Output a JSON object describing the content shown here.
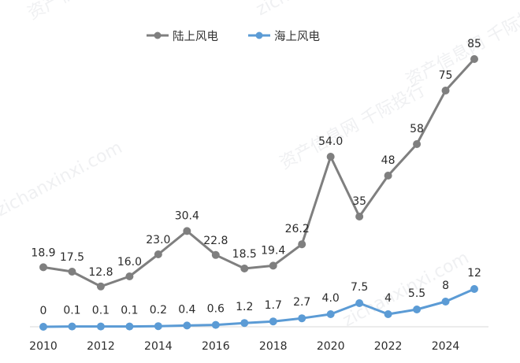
{
  "chart_data": {
    "type": "line",
    "title": "",
    "xlabel": "",
    "ylabel": "",
    "x": [
      2010,
      2011,
      2012,
      2013,
      2014,
      2015,
      2016,
      2017,
      2018,
      2019,
      2020,
      2021,
      2022,
      2023,
      2024,
      2025
    ],
    "x_tick_labels": [
      "2010",
      "2012",
      "2014",
      "2016",
      "2018",
      "2020",
      "2022",
      "2024"
    ],
    "ylim": [
      0,
      90
    ],
    "grid": false,
    "legend": {
      "position": "top-center"
    },
    "series": [
      {
        "name": "陆上风电",
        "color": "#7f7f7f",
        "values": [
          18.9,
          17.5,
          12.8,
          16.0,
          23.0,
          30.4,
          22.8,
          18.5,
          19.4,
          26.2,
          54.0,
          35,
          48,
          58,
          75,
          85
        ],
        "labels": [
          "18.9",
          "17.5",
          "12.8",
          "16.0",
          "23.0",
          "30.4",
          "22.8",
          "18.5",
          "19.4",
          "26.2",
          "54.0",
          "35",
          "48",
          "58",
          "75",
          "85"
        ]
      },
      {
        "name": "海上风电",
        "color": "#5b9bd5",
        "values": [
          0,
          0.1,
          0.1,
          0.1,
          0.2,
          0.4,
          0.6,
          1.2,
          1.7,
          2.7,
          4.0,
          7.5,
          4,
          5.5,
          8,
          12
        ],
        "labels": [
          "0",
          "0.1",
          "0.1",
          "0.1",
          "0.2",
          "0.4",
          "0.6",
          "1.2",
          "1.7",
          "2.7",
          "4.0",
          "7.5",
          "4",
          "5.5",
          "8",
          "12"
        ]
      }
    ]
  },
  "watermark": {
    "lines": [
      "资产信息网 千际投行",
      "zichanxinxi.com"
    ]
  }
}
